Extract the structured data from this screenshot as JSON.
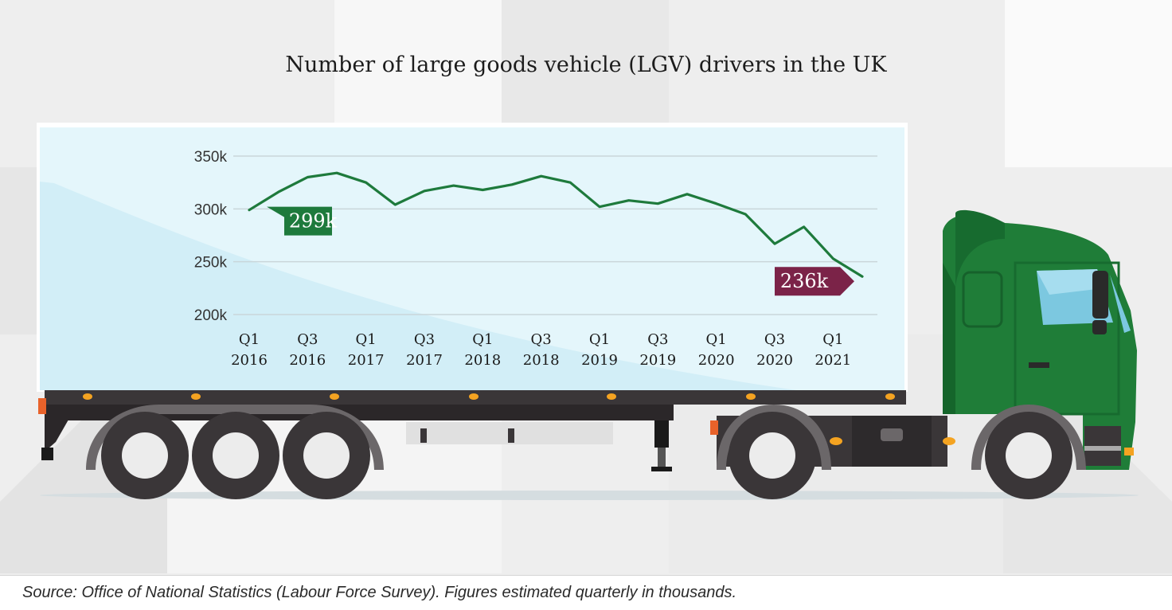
{
  "title": "Number of large goods vehicle (LGV) drivers in the UK",
  "source": "Source: Office of National Statistics (Labour Force Survey). Figures estimated quarterly in thousands.",
  "colors": {
    "line": "#1e7a3c",
    "start_callout": "#1e7a3c",
    "end_callout": "#7b2348",
    "truck_cab": "#1f7d38",
    "trailer": "#e4f6fb"
  },
  "chart_data": {
    "type": "line",
    "title": "Number of large goods vehicle (LGV) drivers in the UK",
    "xlabel": "",
    "ylabel": "",
    "ylim": [
      200,
      350
    ],
    "yticks": [
      {
        "value": 350,
        "label": "350k"
      },
      {
        "value": 300,
        "label": "300k"
      },
      {
        "value": 250,
        "label": "250k"
      },
      {
        "value": 200,
        "label": "200k"
      }
    ],
    "x_tick_labels": [
      {
        "index": 0,
        "q": "Q1",
        "year": "2016"
      },
      {
        "index": 2,
        "q": "Q3",
        "year": "2016"
      },
      {
        "index": 4,
        "q": "Q1",
        "year": "2017"
      },
      {
        "index": 6,
        "q": "Q3",
        "year": "2017"
      },
      {
        "index": 8,
        "q": "Q1",
        "year": "2018"
      },
      {
        "index": 10,
        "q": "Q3",
        "year": "2018"
      },
      {
        "index": 12,
        "q": "Q1",
        "year": "2019"
      },
      {
        "index": 14,
        "q": "Q3",
        "year": "2019"
      },
      {
        "index": 16,
        "q": "Q1",
        "year": "2020"
      },
      {
        "index": 18,
        "q": "Q3",
        "year": "2020"
      },
      {
        "index": 20,
        "q": "Q1",
        "year": "2021"
      }
    ],
    "quarters": [
      "Q1 2016",
      "Q2 2016",
      "Q3 2016",
      "Q4 2016",
      "Q1 2017",
      "Q2 2017",
      "Q3 2017",
      "Q4 2017",
      "Q1 2018",
      "Q2 2018",
      "Q3 2018",
      "Q4 2018",
      "Q1 2019",
      "Q2 2019",
      "Q3 2019",
      "Q4 2019",
      "Q1 2020",
      "Q2 2020",
      "Q3 2020",
      "Q4 2020",
      "Q1 2021",
      "Q2 2021"
    ],
    "values": [
      299,
      316,
      330,
      334,
      325,
      304,
      317,
      322,
      318,
      323,
      331,
      325,
      302,
      308,
      305,
      314,
      305,
      295,
      267,
      283,
      253,
      236
    ],
    "annotations": [
      {
        "index": 0,
        "label": "299k"
      },
      {
        "index": 21,
        "label": "236k"
      }
    ],
    "grid": true
  }
}
